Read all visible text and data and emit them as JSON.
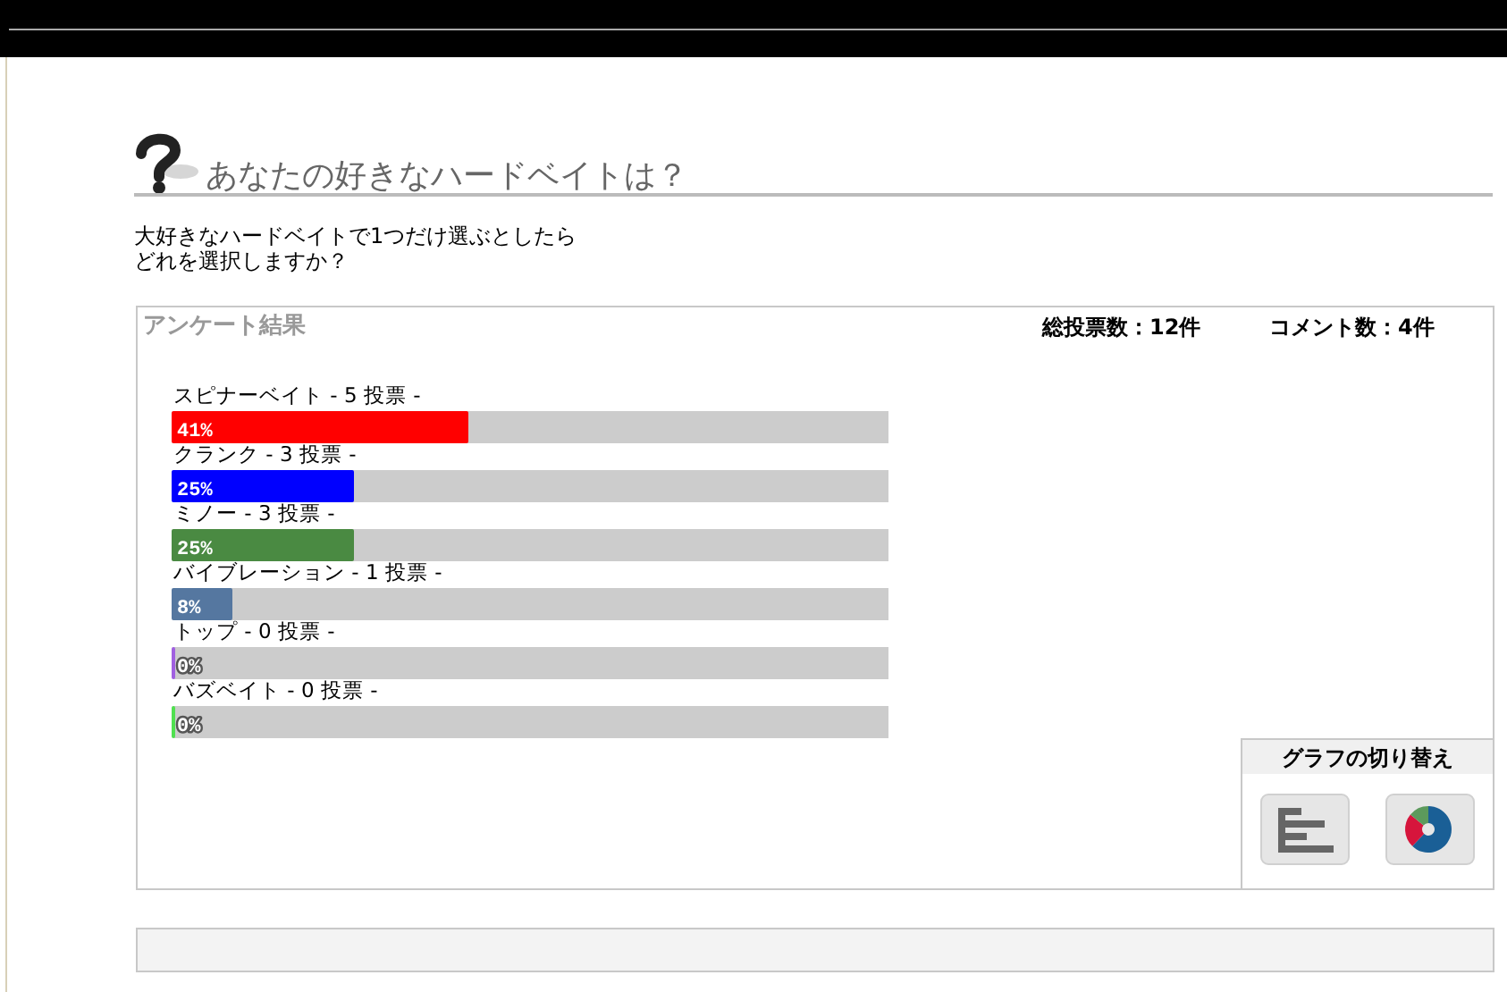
{
  "chart_data": {
    "type": "bar",
    "orientation": "horizontal",
    "title": "あなたの好きなハードベイトは？",
    "subtitle": "大好きなハードベイトで1つだけ選ぶとしたらどれを選択しますか？",
    "categories": [
      "スピナーベイト - 5 投票 -",
      "クランク - 3 投票 -",
      "ミノー - 3 投票 -",
      "バイブレーション - 1 投票 -",
      "トップ - 0 投票 -",
      "バズベイト - 0 投票 -"
    ],
    "values": [
      41,
      25,
      25,
      8,
      0,
      0
    ],
    "colors": [
      "#ff0000",
      "#0000ff",
      "#4a8a42",
      "#5577a0",
      "#a060e0",
      "#50e050"
    ],
    "value_labels": [
      "41%",
      "25%",
      "25%",
      "8%",
      "0%",
      "0%"
    ],
    "xlim": [
      0,
      100
    ],
    "tick_labels": "y",
    "annotations": [
      "アンケート結果",
      "総投票数：12件",
      "コメント数：4件",
      "グラフの切り替え"
    ]
  }
}
